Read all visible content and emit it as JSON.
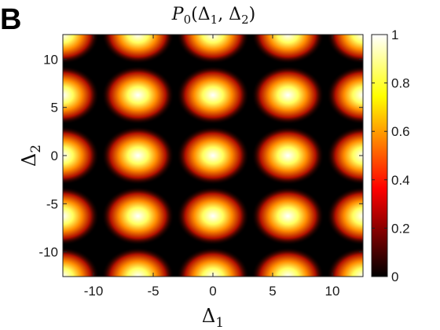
{
  "panel_label": "B",
  "chart_data": {
    "type": "heatmap",
    "title_parts": {
      "main": "P",
      "sub0": "0",
      "open": "(Δ",
      "sub1": "1",
      "mid": ", Δ",
      "sub2": "2",
      "close": ")"
    },
    "xlabel_parts": {
      "main": "Δ",
      "sub": "1"
    },
    "ylabel_parts": {
      "main": "Δ",
      "sub": "2"
    },
    "xlim": [
      -12.57,
      12.57
    ],
    "ylim": [
      -12.57,
      12.57
    ],
    "xticks": [
      -10,
      -5,
      0,
      5,
      10
    ],
    "xtick_labels": [
      "-10",
      "-5",
      "0",
      "5",
      "10"
    ],
    "yticks": [
      -10,
      -5,
      0,
      5,
      10
    ],
    "ytick_labels": [
      "-10",
      "-5",
      "0",
      "5",
      "10"
    ],
    "peak_centers_x": [
      -12.57,
      -6.28,
      0,
      6.28,
      12.57
    ],
    "peak_centers_y": [
      -12.57,
      -6.28,
      0,
      6.28,
      12.57
    ],
    "peak_value": 1,
    "peak_width_sigma": 0.95,
    "colormap": "hot",
    "colorbar": {
      "range": [
        0,
        1
      ],
      "ticks": [
        0,
        0.2,
        0.4,
        0.6,
        0.8,
        1
      ],
      "tick_labels": [
        "0",
        "0.2",
        "0.4",
        "0.6",
        "0.8",
        "1"
      ]
    },
    "grid": false
  }
}
